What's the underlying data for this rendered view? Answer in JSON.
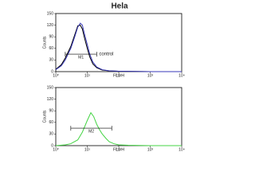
{
  "title": "Hela",
  "chart_data": [
    {
      "type": "line",
      "xlabel": "FL1-H",
      "ylabel": "Counts",
      "xscale": "log",
      "xlim": [
        1,
        10000
      ],
      "ylim": [
        0,
        150
      ],
      "xticks": [
        {
          "value": 1,
          "label": "10⁰"
        },
        {
          "value": 10,
          "label": "10¹"
        },
        {
          "value": 100,
          "label": "10²"
        },
        {
          "value": 1000,
          "label": "10³"
        },
        {
          "value": 10000,
          "label": "10⁴"
        }
      ],
      "yticks": [
        0,
        30,
        60,
        90,
        120,
        150
      ],
      "x": [
        1,
        1.5,
        2,
        3,
        4,
        5,
        6,
        7,
        8,
        10,
        12,
        15,
        20,
        30,
        50,
        100,
        1000,
        10000
      ],
      "series": [
        {
          "color": "#000000",
          "values": [
            6,
            18,
            35,
            65,
            95,
            118,
            120,
            110,
            90,
            60,
            38,
            20,
            10,
            4,
            2,
            1,
            0,
            0
          ]
        },
        {
          "color": "#3a3ab8",
          "values": [
            5,
            15,
            30,
            60,
            90,
            115,
            125,
            120,
            100,
            70,
            45,
            25,
            12,
            5,
            2,
            1,
            0,
            0
          ]
        }
      ],
      "gate": {
        "label": "M1",
        "range": [
          2,
          20
        ],
        "level": 45
      },
      "annotation": "control"
    },
    {
      "type": "line",
      "xlabel": "FL1-H",
      "ylabel": "Counts",
      "xscale": "log",
      "xlim": [
        1,
        10000
      ],
      "ylim": [
        0,
        150
      ],
      "xticks": [
        {
          "value": 1,
          "label": "10⁰"
        },
        {
          "value": 10,
          "label": "10¹"
        },
        {
          "value": 100,
          "label": "10²"
        },
        {
          "value": 1000,
          "label": "10³"
        },
        {
          "value": 10000,
          "label": "10⁴"
        }
      ],
      "yticks": [
        0,
        30,
        60,
        90,
        120,
        150
      ],
      "x": [
        1,
        2,
        3,
        5,
        7,
        10,
        13,
        16,
        20,
        25,
        30,
        40,
        50,
        70,
        100,
        200,
        1000,
        10000
      ],
      "series": [
        {
          "color": "#44d444",
          "values": [
            0,
            2,
            5,
            15,
            35,
            65,
            85,
            75,
            55,
            40,
            30,
            18,
            10,
            5,
            2,
            1,
            0,
            0
          ]
        }
      ],
      "gate": {
        "label": "M2",
        "range": [
          3,
          60
        ],
        "level": 45
      }
    }
  ]
}
